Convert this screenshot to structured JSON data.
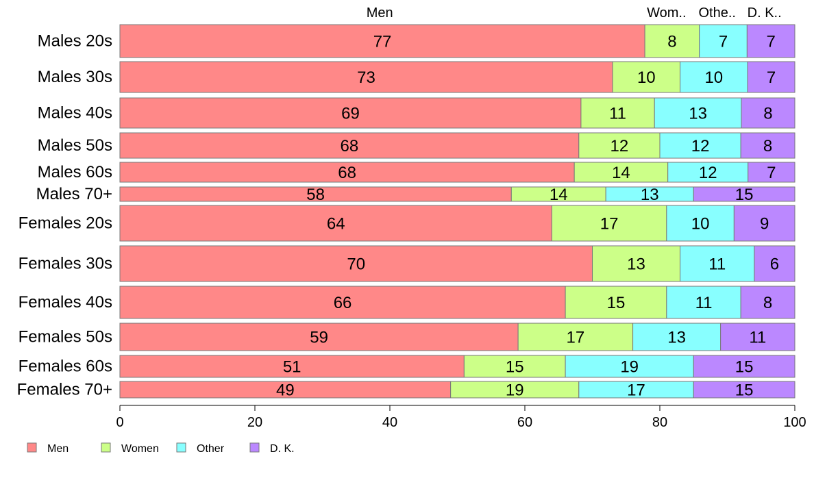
{
  "chart_data": {
    "type": "bar",
    "orientation": "horizontal",
    "stacked": true,
    "mosaic_row_heights_proportional": true,
    "categories": [
      "Males 20s",
      "Males 30s",
      "Males 40s",
      "Males 50s",
      "Males 60s",
      "Males 70+",
      "Females 20s",
      "Females 30s",
      "Females 40s",
      "Females 50s",
      "Females 60s",
      "Females 70+"
    ],
    "column_headers": [
      "Men",
      "Wom..",
      "Othe..",
      "D. K.."
    ],
    "series": [
      {
        "name": "Men",
        "color": "#ff8888",
        "values": [
          77,
          73,
          69,
          68,
          68,
          58,
          64,
          70,
          66,
          59,
          51,
          49
        ]
      },
      {
        "name": "Women",
        "color": "#ccff88",
        "values": [
          8,
          10,
          11,
          12,
          14,
          14,
          17,
          13,
          15,
          17,
          15,
          19
        ]
      },
      {
        "name": "Other",
        "color": "#88ffff",
        "values": [
          7,
          10,
          13,
          12,
          12,
          13,
          10,
          11,
          11,
          13,
          19,
          17
        ]
      },
      {
        "name": "D. K.",
        "color": "#bb88ff",
        "values": [
          7,
          7,
          8,
          8,
          7,
          15,
          9,
          6,
          8,
          11,
          15,
          15
        ]
      }
    ],
    "xlim": [
      0,
      100
    ],
    "xticks": [
      "0",
      "20",
      "40",
      "60",
      "80",
      "100"
    ],
    "legend": "bottom-left",
    "grid": false
  }
}
